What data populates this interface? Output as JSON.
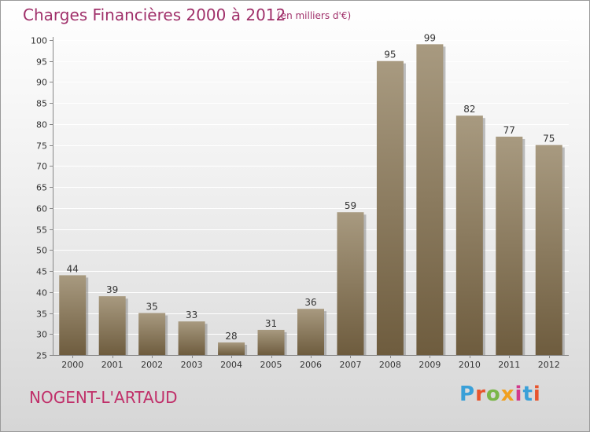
{
  "header": {
    "title": "Charges Financières 2000 à 2012",
    "subtitle": "(en milliers d'€)"
  },
  "footer": {
    "place": "NOGENT-L'ARTAUD",
    "logo_text": "Proxiti",
    "logo_colors": [
      "#3aa0d8",
      "#e8552d",
      "#7ab648",
      "#f0a020",
      "#d23a8c",
      "#3aa0d8",
      "#e8552d"
    ]
  },
  "colors": {
    "bar_top": "#a89a80",
    "bar_bottom": "#6e5c3e",
    "shadow": "#8a8a8a",
    "grid": "#ffffff",
    "title": "#a0306a"
  },
  "chart_data": {
    "type": "bar",
    "categories": [
      "2000",
      "2001",
      "2002",
      "2003",
      "2004",
      "2005",
      "2006",
      "2007",
      "2008",
      "2009",
      "2010",
      "2011",
      "2012"
    ],
    "values": [
      44,
      39,
      35,
      33,
      28,
      31,
      36,
      59,
      95,
      99,
      82,
      77,
      75
    ],
    "ylim": [
      25,
      100
    ],
    "yticks": [
      25,
      30,
      35,
      40,
      45,
      50,
      55,
      60,
      65,
      70,
      75,
      80,
      85,
      90,
      95,
      100
    ],
    "grid": true,
    "xlabel": "",
    "ylabel": ""
  }
}
